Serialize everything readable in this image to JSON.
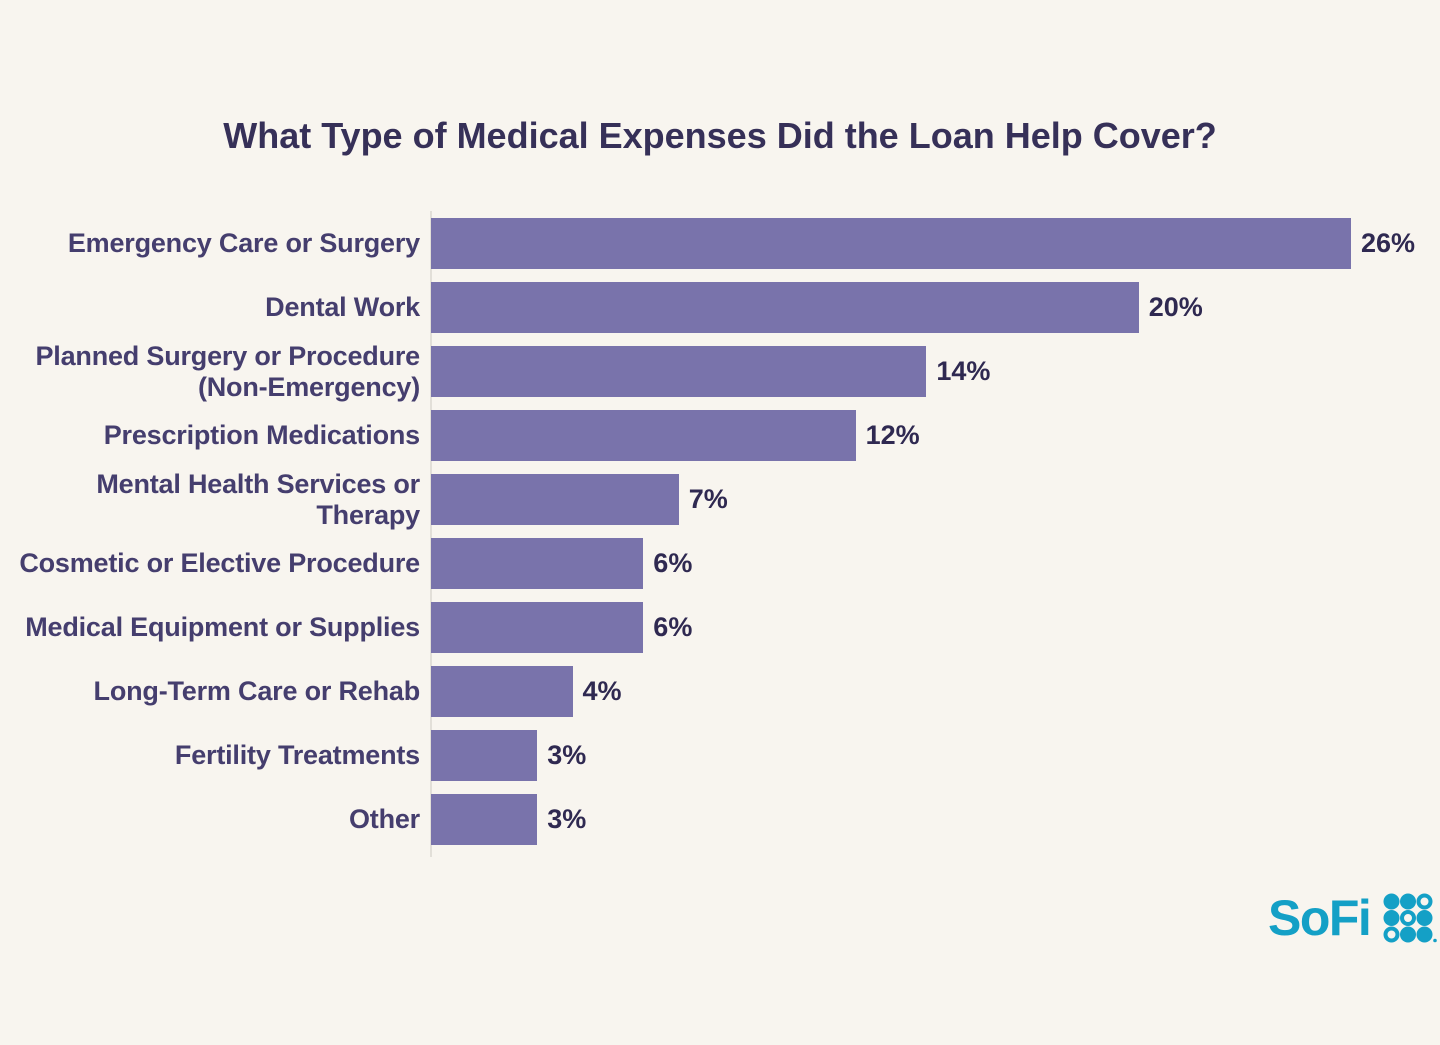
{
  "title": "What Type of Medical Expenses Did the Loan Help Cover?",
  "colors": {
    "background": "#F8F5EF",
    "bar": "#7973AB",
    "title_text": "#363058",
    "label_text": "#453E6E",
    "value_text": "#2F2951",
    "axis_line": "#E2DFD8",
    "brand": "#14A0C6"
  },
  "chart_data": {
    "type": "bar",
    "orientation": "horizontal",
    "title": "What Type of Medical Expenses Did the Loan Help Cover?",
    "categories": [
      "Emergency Care or Surgery",
      "Dental Work",
      "Planned Surgery or Procedure (Non-Emergency)",
      "Prescription Medications",
      "Mental Health Services or Therapy",
      "Cosmetic or Elective Procedure",
      "Medical Equipment or Supplies",
      "Long-Term Care or Rehab",
      "Fertility Treatments",
      "Other"
    ],
    "display_labels": [
      "Emergency Care or Surgery",
      "Dental Work",
      "Planned Surgery or Procedure\n(Non-Emergency)",
      "Prescription Medications",
      "Mental Health Services or\nTherapy",
      "Cosmetic or Elective Procedure",
      "Medical Equipment or Supplies",
      "Long-Term Care or Rehab",
      "Fertility Treatments",
      "Other"
    ],
    "values": [
      26,
      20,
      14,
      12,
      7,
      6,
      6,
      4,
      3,
      3
    ],
    "value_labels": [
      "26%",
      "20%",
      "14%",
      "12%",
      "7%",
      "6%",
      "6%",
      "4%",
      "3%",
      "3%"
    ],
    "xlim": [
      0,
      26
    ],
    "legend": null,
    "grid": false
  },
  "brand": {
    "name": "SoFi",
    "dots": [
      [
        "filled",
        "filled",
        "ring"
      ],
      [
        "filled",
        "ring",
        "filled"
      ],
      [
        "ring",
        "filled",
        "filled"
      ]
    ]
  }
}
